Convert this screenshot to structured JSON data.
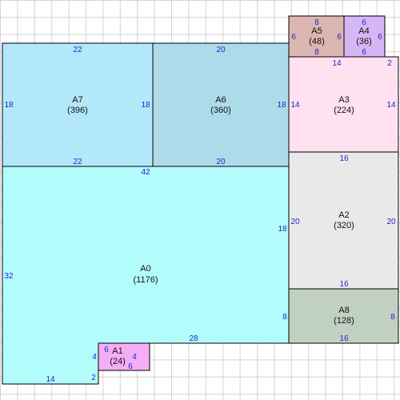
{
  "grid": {
    "color": "#d4d4d4"
  },
  "colors": {
    "dim_label": "#1f1fd1",
    "region_text": "#111111",
    "border": "#000000"
  },
  "regions": [
    {
      "id": "A0",
      "label": "A0",
      "area": "(1176)",
      "fill": "#b3fcfc"
    },
    {
      "id": "A1",
      "label": "A1",
      "area": "(24)",
      "fill": "#f5aef5"
    },
    {
      "id": "A2",
      "label": "A2",
      "area": "(320)",
      "fill": "#e9e9e9"
    },
    {
      "id": "A3",
      "label": "A3",
      "area": "(224)",
      "fill": "#ffe1ef"
    },
    {
      "id": "A4",
      "label": "A4",
      "area": "(36)",
      "fill": "#d6b6f5"
    },
    {
      "id": "A5",
      "label": "A5",
      "area": "(48)",
      "fill": "#dcb6b0"
    },
    {
      "id": "A6",
      "label": "A6",
      "area": "(360)",
      "fill": "#aedbea"
    },
    {
      "id": "A7",
      "label": "A7",
      "area": "(396)",
      "fill": "#b3e8fb"
    },
    {
      "id": "A8",
      "label": "A8",
      "area": "(128)",
      "fill": "#c1d1c1"
    }
  ],
  "dimension_labels": [
    {
      "region": "A7",
      "side": "top",
      "text": "22"
    },
    {
      "region": "A7",
      "side": "bottom",
      "text": "22"
    },
    {
      "region": "A7",
      "side": "left",
      "text": "18"
    },
    {
      "region": "A7",
      "side": "right",
      "text": "18"
    },
    {
      "region": "A6",
      "side": "top",
      "text": "20"
    },
    {
      "region": "A6",
      "side": "bottom",
      "text": "20"
    },
    {
      "region": "A6",
      "side": "right",
      "text": "18"
    },
    {
      "region": "A5",
      "side": "top",
      "text": "8"
    },
    {
      "region": "A5",
      "side": "bottom",
      "text": "8"
    },
    {
      "region": "A5",
      "side": "left",
      "text": "6"
    },
    {
      "region": "A5",
      "side": "right",
      "text": "6"
    },
    {
      "region": "A4",
      "side": "top",
      "text": "6"
    },
    {
      "region": "A4",
      "side": "bottom",
      "text": "6"
    },
    {
      "region": "A4",
      "side": "right",
      "text": "6"
    },
    {
      "region": "A3",
      "side": "top",
      "text": "14"
    },
    {
      "region": "A3",
      "side": "top-right",
      "text": "2"
    },
    {
      "region": "A3",
      "side": "left",
      "text": "14"
    },
    {
      "region": "A3",
      "side": "right",
      "text": "14"
    },
    {
      "region": "A2",
      "side": "top",
      "text": "16"
    },
    {
      "region": "A2",
      "side": "bottom",
      "text": "16"
    },
    {
      "region": "A2",
      "side": "left",
      "text": "20"
    },
    {
      "region": "A2",
      "side": "right",
      "text": "20"
    },
    {
      "region": "A8",
      "side": "bottom",
      "text": "16"
    },
    {
      "region": "A8",
      "side": "right",
      "text": "8"
    },
    {
      "region": "A0",
      "side": "top",
      "text": "42"
    },
    {
      "region": "A0",
      "side": "left",
      "text": "32"
    },
    {
      "region": "A0",
      "side": "right",
      "text": "18"
    },
    {
      "region": "A0",
      "side": "right-lower",
      "text": "8"
    },
    {
      "region": "A0",
      "side": "bottom-mid",
      "text": "28"
    },
    {
      "region": "A0",
      "side": "bottom",
      "text": "14"
    },
    {
      "region": "A0",
      "side": "bottom-step",
      "text": "2"
    },
    {
      "region": "A1",
      "side": "top",
      "text": "6"
    },
    {
      "region": "A1",
      "side": "bottom",
      "text": "6"
    },
    {
      "region": "A1",
      "side": "left",
      "text": "4"
    },
    {
      "region": "A1",
      "side": "right",
      "text": "4"
    }
  ]
}
